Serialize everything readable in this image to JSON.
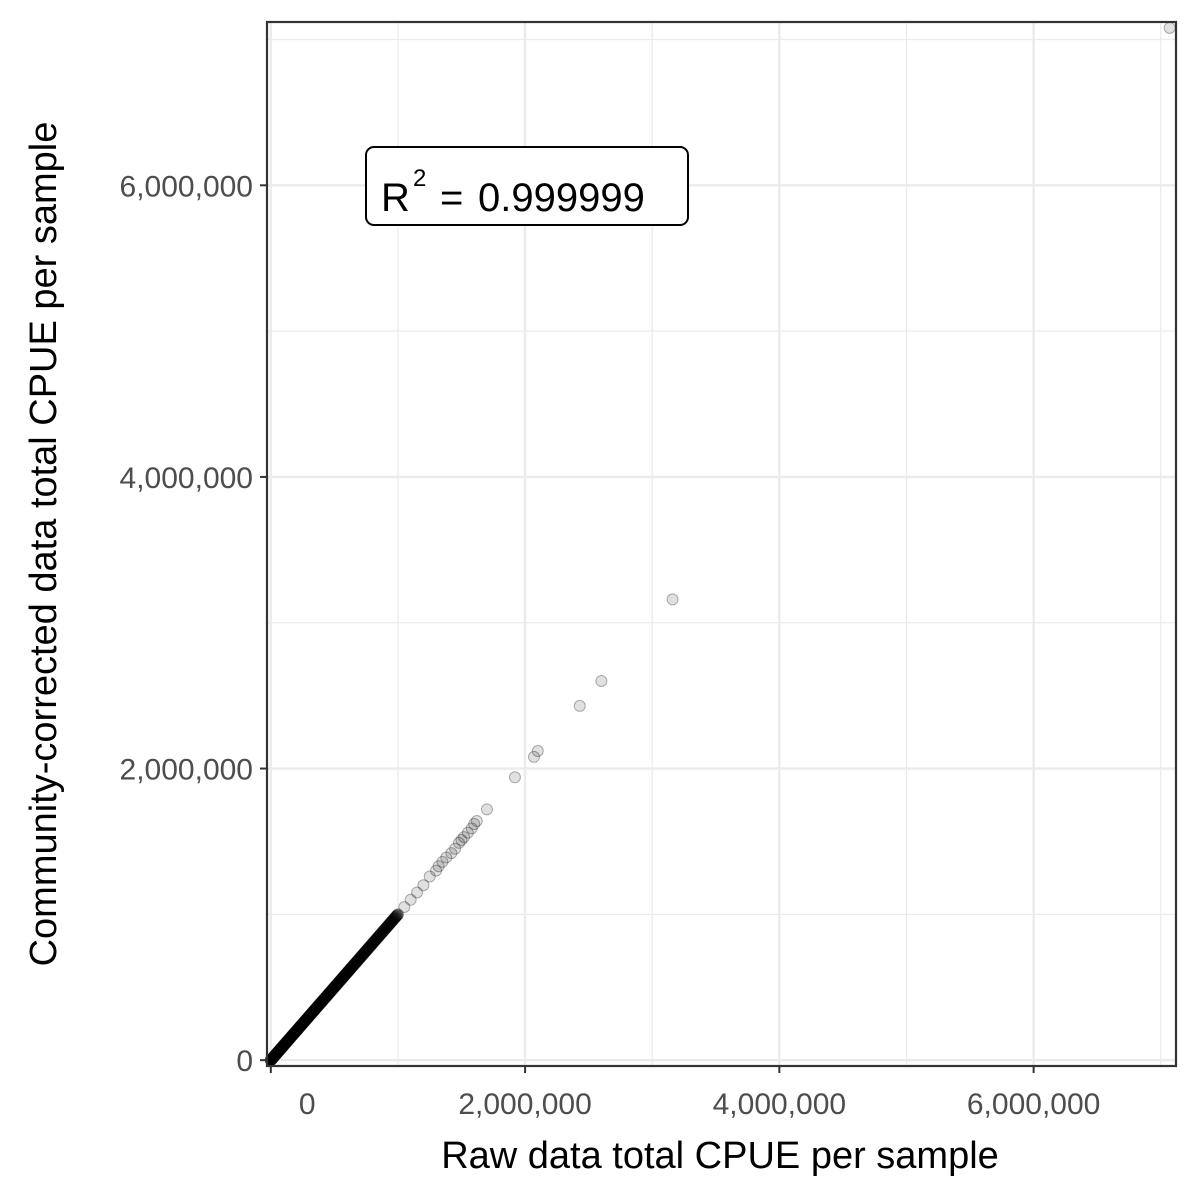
{
  "chart_data": {
    "type": "scatter",
    "title": "",
    "xlabel": "Raw data total CPUE per sample",
    "ylabel": "Community-corrected data total CPUE per sample",
    "xlim": [
      -30000,
      7120000
    ],
    "ylim": [
      -40000,
      7120000
    ],
    "x_major_ticks": [
      0,
      2000000,
      4000000,
      6000000
    ],
    "x_tick_labels": [
      "0",
      "2,000,000",
      "4,000,000",
      "6,000,000"
    ],
    "y_major_ticks": [
      0,
      2000000,
      4000000,
      6000000
    ],
    "y_tick_labels": [
      "0",
      "2,000,000",
      "4,000,000",
      "6,000,000"
    ],
    "x_minor_gridlines": [
      1000000,
      3000000,
      5000000,
      7000000
    ],
    "y_minor_gridlines": [
      1000000,
      3000000,
      5000000,
      7000000
    ],
    "grid": true,
    "annotation": {
      "base": "R",
      "superscript": "2",
      "operator": "=",
      "value": "0.999999"
    },
    "point_color": "#000000",
    "point_alpha": 0.12,
    "dense_range": [
      0,
      1000000
    ],
    "points": [
      {
        "x": 1050000,
        "y": 1050000
      },
      {
        "x": 1100000,
        "y": 1100000
      },
      {
        "x": 1150000,
        "y": 1150000
      },
      {
        "x": 1200000,
        "y": 1200000
      },
      {
        "x": 1250000,
        "y": 1260000
      },
      {
        "x": 1300000,
        "y": 1300000
      },
      {
        "x": 1320000,
        "y": 1330000
      },
      {
        "x": 1350000,
        "y": 1360000
      },
      {
        "x": 1380000,
        "y": 1390000
      },
      {
        "x": 1420000,
        "y": 1420000
      },
      {
        "x": 1450000,
        "y": 1450000
      },
      {
        "x": 1480000,
        "y": 1490000
      },
      {
        "x": 1500000,
        "y": 1510000
      },
      {
        "x": 1520000,
        "y": 1530000
      },
      {
        "x": 1550000,
        "y": 1560000
      },
      {
        "x": 1580000,
        "y": 1590000
      },
      {
        "x": 1600000,
        "y": 1620000
      },
      {
        "x": 1620000,
        "y": 1640000
      },
      {
        "x": 1700000,
        "y": 1720000
      },
      {
        "x": 1920000,
        "y": 1940000
      },
      {
        "x": 2070000,
        "y": 2080000
      },
      {
        "x": 2100000,
        "y": 2120000
      },
      {
        "x": 2430000,
        "y": 2430000
      },
      {
        "x": 2600000,
        "y": 2600000
      },
      {
        "x": 3160000,
        "y": 3160000
      },
      {
        "x": 7070000,
        "y": 7080000
      }
    ]
  }
}
